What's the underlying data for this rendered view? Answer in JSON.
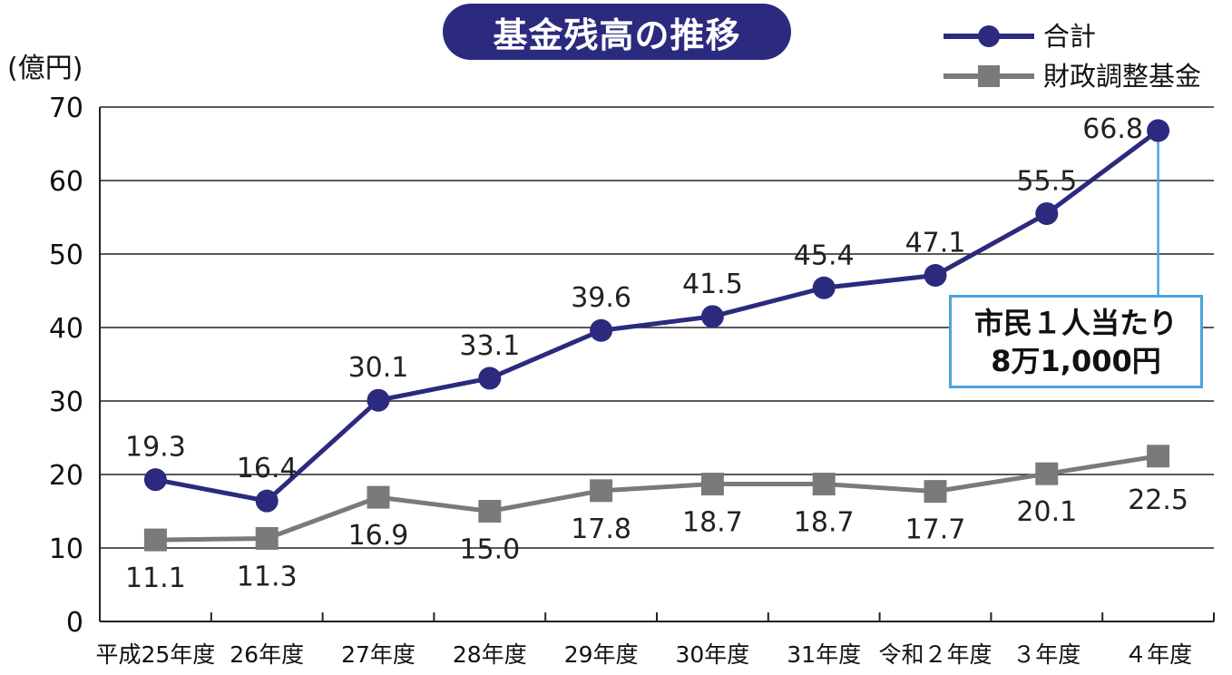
{
  "header": {
    "title": "基金残高の推移",
    "unit": "(億円)"
  },
  "callout": {
    "line1": "市民１人当たり",
    "line2": "8万1,000円"
  },
  "colors": {
    "total": "#2b2a7e",
    "fiscal": "#7a7a7a",
    "callout_border": "#4aa3df",
    "grid": "#222222"
  },
  "chart_data": {
    "type": "line",
    "title": "基金残高の推移",
    "ylabel": "(億円)",
    "ylim": [
      0,
      70
    ],
    "yticks": [
      0,
      10,
      20,
      30,
      40,
      50,
      60,
      70
    ],
    "grid": true,
    "legend": "top-right",
    "categories": [
      "平成25年度",
      "26年度",
      "27年度",
      "28年度",
      "29年度",
      "30年度",
      "31年度",
      "令和２年度",
      "３年度",
      "４年度"
    ],
    "series": [
      {
        "name": "合計",
        "marker": "circle",
        "values": [
          19.3,
          16.4,
          30.1,
          33.1,
          39.6,
          41.5,
          45.4,
          47.1,
          55.5,
          66.8
        ]
      },
      {
        "name": "財政調整基金",
        "marker": "square",
        "values": [
          11.1,
          11.3,
          16.9,
          15.0,
          17.8,
          18.7,
          18.7,
          17.7,
          20.1,
          22.5
        ]
      }
    ]
  }
}
